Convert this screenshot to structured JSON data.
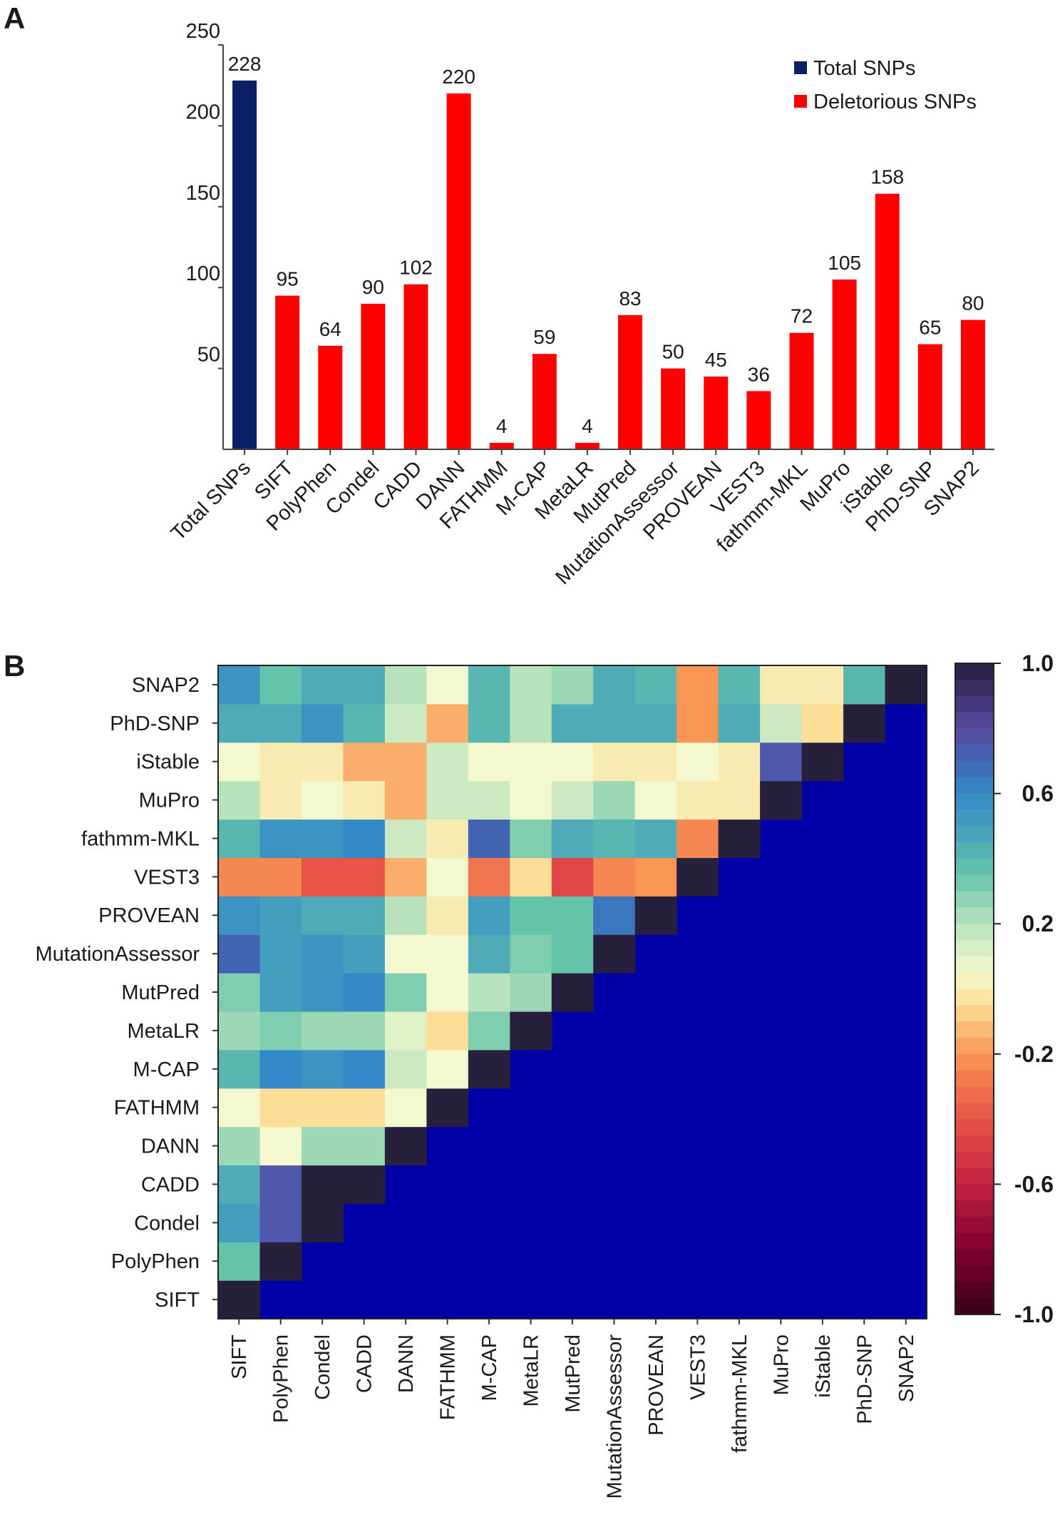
{
  "panel_a": {
    "label": "A"
  },
  "panel_b": {
    "label": "B"
  },
  "chart_data": [
    {
      "type": "bar",
      "title": "",
      "xlabel": "",
      "ylabel": "",
      "ylim": [
        0,
        250
      ],
      "yticks": [
        50,
        100,
        150,
        200,
        250
      ],
      "grid": false,
      "legend_position": "top-right",
      "legend": [
        {
          "label": "Total SNPs",
          "color": "#0b1f66"
        },
        {
          "label": "Deletorious SNPs",
          "color": "#ff0000"
        }
      ],
      "categories": [
        "Total SNPs",
        "SIFT",
        "PolyPhen",
        "Condel",
        "CADD",
        "DANN",
        "FATHMM",
        "M-CAP",
        "MetaLR",
        "MutPred",
        "MutationAssessor",
        "PROVEAN",
        "VEST3",
        "fathmm-MKL",
        "MuPro",
        "iStable",
        "PhD-SNP",
        "SNAP2"
      ],
      "values": [
        228,
        95,
        64,
        90,
        102,
        220,
        4,
        59,
        4,
        83,
        50,
        45,
        36,
        72,
        105,
        158,
        65,
        80
      ],
      "series_index": [
        0,
        1,
        1,
        1,
        1,
        1,
        1,
        1,
        1,
        1,
        1,
        1,
        1,
        1,
        1,
        1,
        1,
        1
      ]
    },
    {
      "type": "heatmap",
      "title": "",
      "labels": [
        "SIFT",
        "PolyPhen",
        "Condel",
        "CADD",
        "DANN",
        "FATHMM",
        "M-CAP",
        "MetaLR",
        "MutPred",
        "MutationAssessor",
        "PROVEAN",
        "VEST3",
        "fathmm-MKL",
        "MuPro",
        "iStable",
        "PhD-SNP",
        "SNAP2"
      ],
      "masked_upper_color": "#0000a8",
      "colorbar": {
        "range": [
          -1.0,
          1.0
        ],
        "tick_labels": [
          "1.0",
          "0.6",
          "0.2",
          "-0.2",
          "-0.6",
          "-1.0"
        ],
        "tick_values": [
          1.0,
          0.6,
          0.2,
          -0.2,
          -0.6,
          -1.0
        ]
      },
      "lower_triangle_by_row": [
        [
          1.0
        ],
        [
          0.35,
          1.0
        ],
        [
          0.5,
          0.75,
          1.0
        ],
        [
          0.45,
          0.75,
          1.0,
          1.0
        ],
        [
          0.25,
          0.05,
          0.25,
          0.25,
          1.0
        ],
        [
          0.05,
          -0.05,
          -0.05,
          -0.05,
          0.05,
          1.0
        ],
        [
          0.4,
          0.6,
          0.55,
          0.6,
          0.15,
          0.05,
          1.0
        ],
        [
          0.25,
          0.3,
          0.25,
          0.25,
          0.1,
          -0.05,
          0.3,
          1.0
        ],
        [
          0.3,
          0.5,
          0.55,
          0.6,
          0.3,
          0.05,
          0.2,
          0.25,
          1.0
        ],
        [
          0.7,
          0.5,
          0.55,
          0.5,
          0.05,
          0.05,
          0.45,
          0.3,
          0.35,
          1.0
        ],
        [
          0.55,
          0.5,
          0.45,
          0.45,
          0.2,
          0.0,
          0.5,
          0.35,
          0.35,
          0.65,
          1.0
        ],
        [
          -0.25,
          -0.25,
          -0.4,
          -0.4,
          -0.15,
          0.05,
          -0.3,
          -0.05,
          -0.45,
          -0.25,
          -0.2,
          1.0
        ],
        [
          0.4,
          0.55,
          0.55,
          0.6,
          0.15,
          0.0,
          0.7,
          0.3,
          0.45,
          0.4,
          0.45,
          -0.25,
          1.0
        ],
        [
          0.2,
          0.0,
          0.05,
          0.0,
          -0.15,
          0.15,
          0.15,
          0.05,
          0.15,
          0.25,
          0.05,
          0.0,
          0.0,
          1.0
        ],
        [
          0.05,
          0.0,
          0.0,
          -0.15,
          -0.15,
          0.15,
          0.05,
          0.05,
          0.05,
          0.0,
          0.0,
          0.05,
          0.0,
          0.75,
          1.0
        ],
        [
          0.45,
          0.45,
          0.55,
          0.4,
          0.15,
          -0.15,
          0.4,
          0.2,
          0.45,
          0.45,
          0.45,
          -0.2,
          0.45,
          0.15,
          -0.05,
          1.0
        ],
        [
          0.55,
          0.35,
          0.45,
          0.45,
          0.2,
          0.05,
          0.4,
          0.2,
          0.25,
          0.45,
          0.4,
          -0.2,
          0.4,
          0.0,
          0.0,
          0.4,
          1.0
        ]
      ]
    }
  ]
}
